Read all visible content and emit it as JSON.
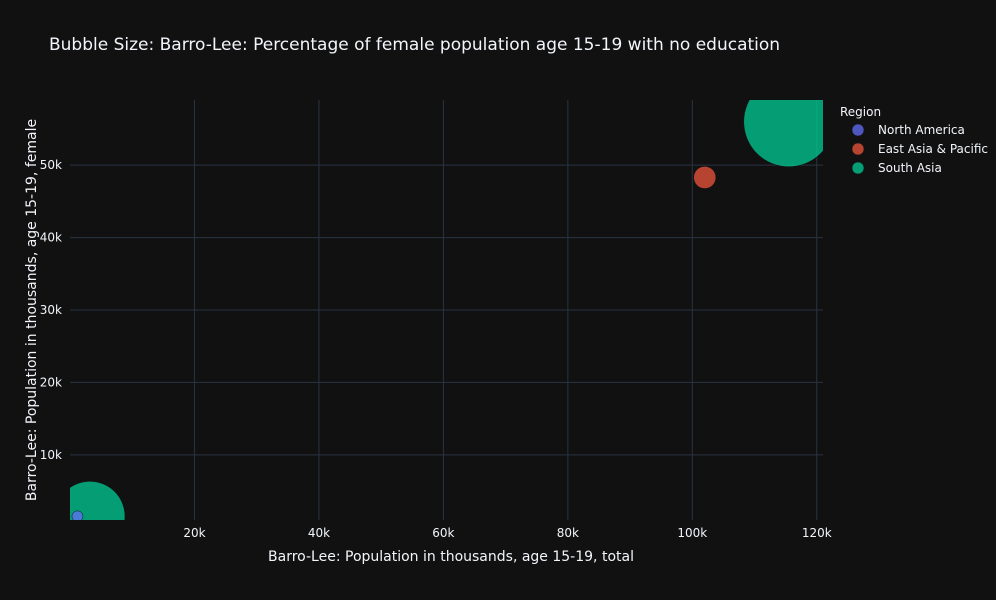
{
  "chart_data": {
    "type": "scatter",
    "title": "Bubble Size: Barro-Lee: Percentage of female population age 15-19 with no education",
    "xlabel": "Barro-Lee: Population in thousands, age 15-19, total",
    "ylabel": "Barro-Lee: Population in thousands, age 15-19, female",
    "xlim": [
      0,
      121000
    ],
    "ylim": [
      1000,
      59000
    ],
    "x_ticks": [
      20000,
      40000,
      60000,
      80000,
      100000,
      120000
    ],
    "x_tick_labels": [
      "20k",
      "40k",
      "60k",
      "80k",
      "100k",
      "120k"
    ],
    "y_ticks": [
      10000,
      20000,
      30000,
      40000,
      50000
    ],
    "y_tick_labels": [
      "10k",
      "20k",
      "30k",
      "40k",
      "50k"
    ],
    "grid": true,
    "legend_title": "Region",
    "legend_position": "top-right",
    "series": [
      {
        "name": "North America",
        "color": "#636efa",
        "points": [
          {
            "x": 1200,
            "y": 1500,
            "size": 1
          }
        ]
      },
      {
        "name": "East Asia & Pacific",
        "color": "#EF553B",
        "points": [
          {
            "x": 102000,
            "y": 48300,
            "size": 4
          }
        ]
      },
      {
        "name": "South Asia",
        "color": "#00cc96",
        "points": [
          {
            "x": 115500,
            "y": 56000,
            "size": 66
          },
          {
            "x": 3200,
            "y": 1500,
            "size": 40
          }
        ]
      }
    ]
  }
}
